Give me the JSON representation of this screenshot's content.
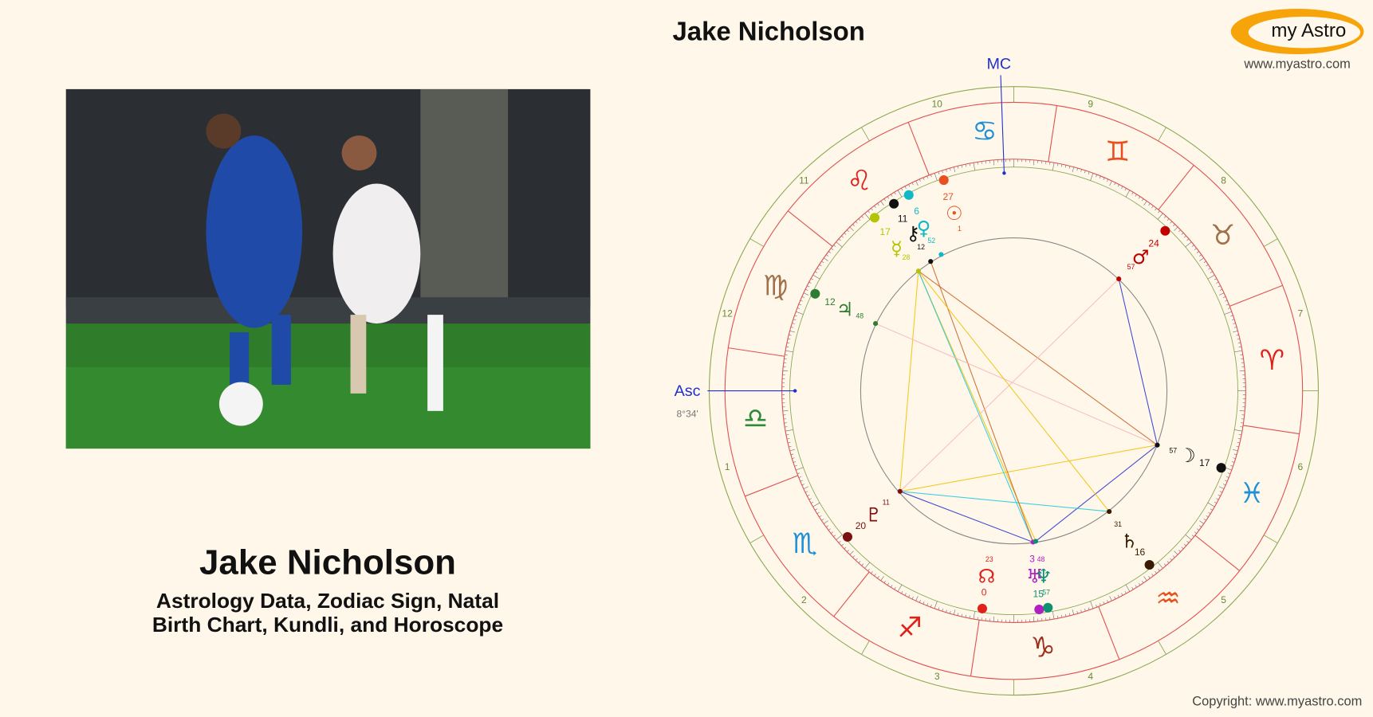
{
  "header": {
    "title": "Jake Nicholson"
  },
  "logo": {
    "text": "my Astro",
    "url": "www.myastro.com"
  },
  "profile": {
    "name": "Jake Nicholson",
    "subtitle_lines": [
      "Astrology Data, Zodiac Sign, Natal",
      "Birth Chart, Kundli, and Horoscope"
    ]
  },
  "wheel": {
    "mc_label": "MC",
    "asc_label": "Asc",
    "asc_degree": "8°34'",
    "houses": [
      1,
      2,
      3,
      4,
      5,
      6,
      7,
      8,
      9,
      10,
      11,
      12
    ],
    "signs": [
      "♈",
      "♉",
      "♊",
      "♋",
      "♌",
      "♍",
      "♎",
      "♏",
      "♐",
      "♑",
      "♒",
      "♓"
    ],
    "planets": [
      {
        "glyph": "☉",
        "degree": 27,
        "minute": 1
      },
      {
        "glyph": "♀",
        "degree": 6,
        "minute": 52
      },
      {
        "glyph": "⚷",
        "degree": 11,
        "minute": 12
      },
      {
        "glyph": "☿",
        "degree": 17,
        "minute": 28
      },
      {
        "glyph": "♃",
        "degree": 12,
        "minute": 48
      },
      {
        "glyph": "♇",
        "degree": 20,
        "minute": 11
      },
      {
        "glyph": "☊",
        "degree": 0,
        "minute": 23
      },
      {
        "glyph": "♅",
        "degree": 3,
        "minute": 48
      },
      {
        "glyph": "♆",
        "degree": 15,
        "minute": 57
      },
      {
        "glyph": "♄",
        "degree": 16,
        "minute": 31
      },
      {
        "glyph": "☽",
        "degree": 17,
        "minute": 57
      },
      {
        "glyph": "♂",
        "degree": 24,
        "minute": 57
      }
    ]
  },
  "footer": {
    "copyright": "Copyright: www.myastro.com"
  }
}
